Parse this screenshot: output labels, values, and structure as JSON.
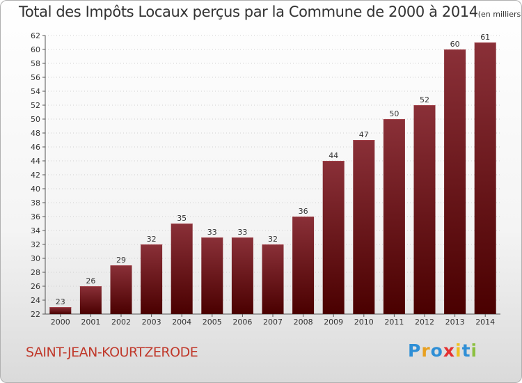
{
  "title": "Total des Impôts Locaux perçus par la Commune de 2000 à 2014",
  "title_unit": "(en milliers d'€)",
  "commune": "SAINT-JEAN-KOURTZERODE",
  "logo": {
    "letters": [
      "P",
      "r",
      "o",
      "x",
      "i",
      "t",
      "i"
    ],
    "colors": [
      "#2f8fd6",
      "#e8a020",
      "#2f8fd6",
      "#e53030",
      "#f0c020",
      "#2f8fd6",
      "#8cc040"
    ]
  },
  "colors": {
    "bar_top": "#8a3038",
    "bar_bottom": "#4a0000",
    "commune": "#c0392b"
  },
  "chart_data": {
    "type": "bar",
    "title": "Total des Impôts Locaux perçus par la Commune de 2000 à 2014",
    "categories": [
      "2000",
      "2001",
      "2002",
      "2003",
      "2004",
      "2005",
      "2006",
      "2007",
      "2008",
      "2009",
      "2010",
      "2011",
      "2012",
      "2013",
      "2014"
    ],
    "values": [
      23,
      26,
      29,
      32,
      35,
      33,
      33,
      32,
      36,
      44,
      47,
      50,
      52,
      60,
      61
    ],
    "ylim": [
      22,
      62
    ],
    "yticks": [
      22,
      24,
      26,
      28,
      30,
      32,
      34,
      36,
      38,
      40,
      42,
      44,
      46,
      48,
      50,
      52,
      54,
      56,
      58,
      60,
      62
    ],
    "grid": true,
    "data_labels": true
  }
}
